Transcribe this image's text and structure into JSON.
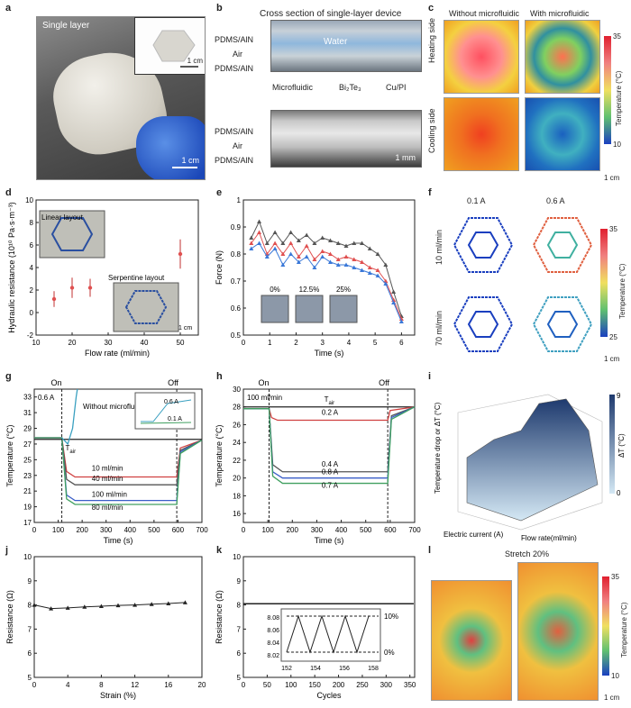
{
  "panels": {
    "a": {
      "letter": "a",
      "title": "Single layer",
      "scale": "1 cm",
      "inset_scale": "1 cm"
    },
    "b": {
      "letter": "b",
      "title": "Cross section of single-layer device",
      "top_labels": [
        "PDMS/AlN",
        "Air",
        "PDMS/AlN"
      ],
      "water": "Water",
      "mid_labels": [
        "Microfluidic",
        "Bi₂Te₃",
        "Cu/PI"
      ],
      "bottom_labels": [
        "PDMS/AlN",
        "Air",
        "PDMS/AlN"
      ],
      "scale": "1 mm"
    },
    "c": {
      "letter": "c",
      "col1": "Without microfluidic",
      "col2": "With microfluidic",
      "row1": "Heating side",
      "row2": "Cooling side",
      "cbar_max": "35",
      "cbar_min": "10",
      "cbar_label": "Temperature (°C)",
      "scale": "1 cm"
    },
    "d": {
      "letter": "d",
      "ylabel": "Hydraulic resistance (10¹⁰ Pa·s·m⁻³)",
      "xlabel": "Flow rate (ml/min)",
      "inset1": "Linear layout",
      "inset2": "Serpentine layout",
      "scale": "1 cm"
    },
    "e": {
      "letter": "e",
      "ylabel": "Force (N)",
      "xlabel": "Time (s)",
      "insets": [
        "0%",
        "12.5%",
        "25%"
      ]
    },
    "f": {
      "letter": "f",
      "col1": "0.1 A",
      "col2": "0.6 A",
      "row1": "10 ml/min",
      "row2": "70 ml/min",
      "cbar_max": "35",
      "cbar_min": "25",
      "cbar_label": "Temperature (°C)",
      "scale": "1 cm"
    },
    "g": {
      "letter": "g",
      "ylabel": "Temperature (°C)",
      "xlabel": "Time (s)",
      "on": "On",
      "off": "Off",
      "current": "0.6 A",
      "annot": "Without microfluidic",
      "tair": "T",
      "tair_sub": "air",
      "lines": [
        "10 ml/min",
        "40 ml/min",
        "100 ml/min",
        "80 ml/min"
      ],
      "inset_a": "0.6 A",
      "inset_b": "0.1 A"
    },
    "h": {
      "letter": "h",
      "ylabel": "Temperature (°C)",
      "xlabel": "Time (s)",
      "on": "On",
      "off": "Off",
      "flow": "100 ml/min",
      "tair": "T",
      "tair_sub": "air",
      "lines": [
        "0.2 A",
        "0.4 A",
        "0.8 A",
        "0.7 A"
      ]
    },
    "i": {
      "letter": "i",
      "zlabel": "Temperature drop or ΔT (°C)",
      "xlabel": "Electric current (A)",
      "ylabel": "Flow rate(ml/min)",
      "cbar_max": "9",
      "cbar_min": "0",
      "cbar_label": "ΔT (°C)"
    },
    "j": {
      "letter": "j",
      "ylabel": "Resistance (Ω)",
      "xlabel": "Strain (%)"
    },
    "k": {
      "letter": "k",
      "ylabel": "Resistance (Ω)",
      "xlabel": "Cycles",
      "inset_right_top": "10%",
      "inset_right_bottom": "0%"
    },
    "l": {
      "letter": "l",
      "stretch": "Stretch 20%",
      "cbar_max": "35",
      "cbar_min": "10",
      "cbar_label": "Temperature (°C)",
      "scale": "1 cm"
    }
  },
  "chart_data": [
    {
      "id": "d",
      "type": "scatter",
      "xlabel": "Flow rate (ml/min)",
      "ylabel": "Hydraulic resistance (10¹⁰ Pa·s·m⁻³)",
      "xlim": [
        10,
        55
      ],
      "ylim": [
        -2,
        10
      ],
      "xticks": [
        10,
        20,
        30,
        40,
        50
      ],
      "yticks": [
        -2,
        0,
        2,
        4,
        6,
        8,
        10
      ],
      "x": [
        15,
        20,
        25,
        50
      ],
      "y": [
        1.2,
        2.2,
        2.2,
        5.2
      ],
      "err": [
        0.7,
        0.9,
        0.8,
        1.3
      ]
    },
    {
      "id": "e",
      "type": "line",
      "xlabel": "Time (s)",
      "ylabel": "Force (N)",
      "xlim": [
        0,
        6.5
      ],
      "ylim": [
        0.5,
        1.0
      ],
      "xticks": [
        0,
        1,
        2,
        3,
        4,
        5,
        6
      ],
      "yticks": [
        0.5,
        0.6,
        0.7,
        0.8,
        0.9,
        1.0
      ],
      "series": [
        {
          "color": "#555555",
          "x": [
            0.3,
            0.6,
            0.9,
            1.2,
            1.5,
            1.8,
            2.1,
            2.4,
            2.7,
            3.0,
            3.3,
            3.6,
            3.9,
            4.2,
            4.5,
            4.8,
            5.1,
            5.4,
            5.7,
            6.0
          ],
          "y": [
            0.86,
            0.92,
            0.84,
            0.88,
            0.84,
            0.88,
            0.85,
            0.87,
            0.84,
            0.86,
            0.85,
            0.84,
            0.83,
            0.84,
            0.84,
            0.82,
            0.8,
            0.76,
            0.66,
            0.57
          ]
        },
        {
          "color": "#e05050",
          "x": [
            0.3,
            0.6,
            0.9,
            1.2,
            1.5,
            1.8,
            2.1,
            2.4,
            2.7,
            3.0,
            3.3,
            3.6,
            3.9,
            4.2,
            4.5,
            4.8,
            5.1,
            5.4,
            5.7,
            6.0
          ],
          "y": [
            0.84,
            0.88,
            0.8,
            0.84,
            0.8,
            0.84,
            0.79,
            0.83,
            0.78,
            0.81,
            0.8,
            0.78,
            0.79,
            0.78,
            0.77,
            0.75,
            0.74,
            0.7,
            0.63,
            0.56
          ]
        },
        {
          "color": "#3a78d8",
          "x": [
            0.3,
            0.6,
            0.9,
            1.2,
            1.5,
            1.8,
            2.1,
            2.4,
            2.7,
            3.0,
            3.3,
            3.6,
            3.9,
            4.2,
            4.5,
            4.8,
            5.1,
            5.4,
            5.7,
            6.0
          ],
          "y": [
            0.82,
            0.84,
            0.79,
            0.82,
            0.76,
            0.8,
            0.77,
            0.79,
            0.75,
            0.79,
            0.77,
            0.76,
            0.76,
            0.75,
            0.74,
            0.73,
            0.72,
            0.69,
            0.62,
            0.55
          ]
        }
      ]
    },
    {
      "id": "g",
      "type": "line",
      "xlabel": "Time (s)",
      "ylabel": "Temperature (°C)",
      "xlim": [
        0,
        700
      ],
      "ylim": [
        17,
        34
      ],
      "xticks": [
        0,
        100,
        200,
        300,
        400,
        500,
        600,
        700
      ],
      "yticks": [
        17,
        19,
        21,
        23,
        25,
        27,
        29,
        31,
        33
      ],
      "series": [
        {
          "name": "10 ml/min",
          "color": "#d04040",
          "pts": [
            [
              0,
              27.8
            ],
            [
              115,
              27.8
            ],
            [
              135,
              23.5
            ],
            [
              170,
              22.8
            ],
            [
              595,
              22.8
            ],
            [
              610,
              26.5
            ],
            [
              700,
              27.5
            ]
          ]
        },
        {
          "name": "40 ml/min",
          "color": "#555555",
          "pts": [
            [
              0,
              27.8
            ],
            [
              115,
              27.8
            ],
            [
              135,
              22.5
            ],
            [
              170,
              21.8
            ],
            [
              595,
              21.8
            ],
            [
              610,
              26.2
            ],
            [
              700,
              27.5
            ]
          ]
        },
        {
          "name": "100 ml/min",
          "color": "#3a5ec8",
          "pts": [
            [
              0,
              27.8
            ],
            [
              115,
              27.8
            ],
            [
              135,
              20.5
            ],
            [
              170,
              19.8
            ],
            [
              595,
              19.8
            ],
            [
              610,
              26.0
            ],
            [
              700,
              27.5
            ]
          ]
        },
        {
          "name": "80 ml/min",
          "color": "#40a060",
          "pts": [
            [
              0,
              27.8
            ],
            [
              115,
              27.8
            ],
            [
              135,
              20.0
            ],
            [
              170,
              19.3
            ],
            [
              595,
              19.3
            ],
            [
              610,
              25.8
            ],
            [
              700,
              27.5
            ]
          ]
        },
        {
          "name": "Tair",
          "color": "#222222",
          "pts": [
            [
              0,
              27.6
            ],
            [
              700,
              27.6
            ]
          ]
        },
        {
          "name": "without",
          "color": "#3aa0c0",
          "pts": [
            [
              115,
              27.8
            ],
            [
              140,
              27.0
            ],
            [
              160,
              29.0
            ],
            [
              175,
              33.0
            ],
            [
              180,
              34
            ]
          ]
        }
      ]
    },
    {
      "id": "h",
      "type": "line",
      "xlabel": "Time (s)",
      "ylabel": "Temperature (°C)",
      "xlim": [
        0,
        700
      ],
      "ylim": [
        15,
        30
      ],
      "xticks": [
        0,
        100,
        200,
        300,
        400,
        500,
        600,
        700
      ],
      "yticks": [
        16,
        18,
        20,
        22,
        24,
        26,
        28,
        30
      ],
      "series": [
        {
          "name": "Tair",
          "color": "#222222",
          "pts": [
            [
              0,
              28.0
            ],
            [
              700,
              28.0
            ]
          ]
        },
        {
          "name": "0.2 A",
          "color": "#d04040",
          "pts": [
            [
              0,
              27.8
            ],
            [
              105,
              27.8
            ],
            [
              115,
              26.8
            ],
            [
              140,
              26.5
            ],
            [
              590,
              26.5
            ],
            [
              600,
              27.6
            ],
            [
              700,
              28
            ]
          ]
        },
        {
          "name": "0.4 A",
          "color": "#555555",
          "pts": [
            [
              0,
              27.8
            ],
            [
              105,
              27.8
            ],
            [
              120,
              21.5
            ],
            [
              160,
              20.7
            ],
            [
              590,
              20.7
            ],
            [
              605,
              27.0
            ],
            [
              700,
              28
            ]
          ]
        },
        {
          "name": "0.8 A",
          "color": "#3a5ec8",
          "pts": [
            [
              0,
              27.8
            ],
            [
              105,
              27.8
            ],
            [
              120,
              20.7
            ],
            [
              160,
              20.0
            ],
            [
              590,
              20.0
            ],
            [
              605,
              26.8
            ],
            [
              700,
              28
            ]
          ]
        },
        {
          "name": "0.7 A",
          "color": "#40a060",
          "pts": [
            [
              0,
              27.8
            ],
            [
              105,
              27.8
            ],
            [
              120,
              20.2
            ],
            [
              160,
              19.4
            ],
            [
              590,
              19.4
            ],
            [
              605,
              26.6
            ],
            [
              700,
              28
            ]
          ]
        }
      ]
    },
    {
      "id": "j",
      "type": "line",
      "xlabel": "Strain (%)",
      "ylabel": "Resistance (Ω)",
      "xlim": [
        0,
        20
      ],
      "ylim": [
        5,
        10
      ],
      "xticks": [
        0,
        4,
        8,
        12,
        16,
        20
      ],
      "yticks": [
        5,
        6,
        7,
        8,
        9,
        10
      ],
      "x": [
        0,
        2,
        4,
        6,
        8,
        10,
        12,
        14,
        16,
        18
      ],
      "y": [
        8.0,
        7.85,
        7.88,
        7.92,
        7.95,
        7.98,
        8.0,
        8.03,
        8.06,
        8.1
      ]
    },
    {
      "id": "k",
      "type": "line",
      "xlabel": "Cycles",
      "ylabel": "Resistance (Ω)",
      "xlim": [
        0,
        360
      ],
      "ylim": [
        5,
        10
      ],
      "xticks": [
        0,
        50,
        100,
        150,
        200,
        250,
        300,
        350
      ],
      "yticks": [
        5,
        6,
        7,
        8,
        9,
        10
      ],
      "inset_xticks": [
        152,
        154,
        156,
        158
      ],
      "inset_yticks": [
        8.02,
        8.04,
        8.06,
        8.08
      ]
    }
  ]
}
